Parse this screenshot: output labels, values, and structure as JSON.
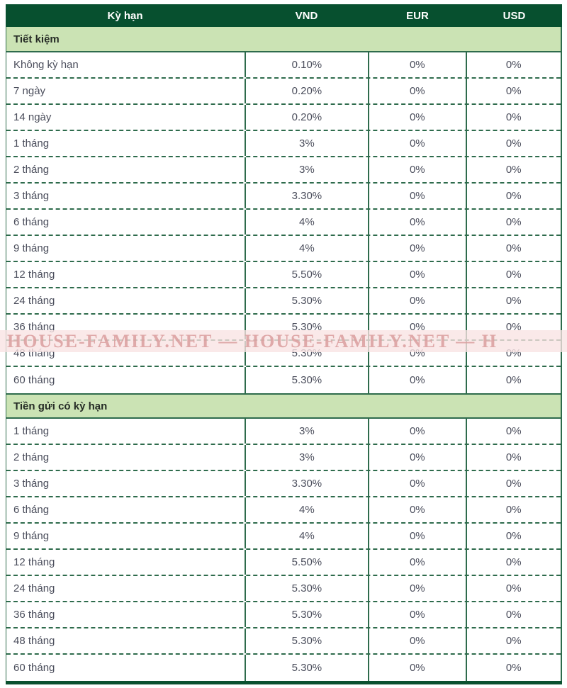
{
  "table": {
    "columns": [
      "Kỳ hạn",
      "VND",
      "EUR",
      "USD"
    ],
    "sections": [
      {
        "title": "Tiết kiệm",
        "rows": [
          [
            "Không kỳ hạn",
            "0.10%",
            "0%",
            "0%"
          ],
          [
            "7 ngày",
            "0.20%",
            "0%",
            "0%"
          ],
          [
            "14 ngày",
            "0.20%",
            "0%",
            "0%"
          ],
          [
            "1 tháng",
            "3%",
            "0%",
            "0%"
          ],
          [
            "2 tháng",
            "3%",
            "0%",
            "0%"
          ],
          [
            "3 tháng",
            "3.30%",
            "0%",
            "0%"
          ],
          [
            "6 tháng",
            "4%",
            "0%",
            "0%"
          ],
          [
            "9 tháng",
            "4%",
            "0%",
            "0%"
          ],
          [
            "12 tháng",
            "5.50%",
            "0%",
            "0%"
          ],
          [
            "24 tháng",
            "5.30%",
            "0%",
            "0%"
          ],
          [
            "36 tháng",
            "5.30%",
            "0%",
            "0%"
          ],
          [
            "48 tháng",
            "5.30%",
            "0%",
            "0%"
          ],
          [
            "60 tháng",
            "5.30%",
            "0%",
            "0%"
          ]
        ]
      },
      {
        "title": "Tiền gửi có kỳ hạn",
        "rows": [
          [
            "1 tháng",
            "3%",
            "0%",
            "0%"
          ],
          [
            "2 tháng",
            "3%",
            "0%",
            "0%"
          ],
          [
            "3 tháng",
            "3.30%",
            "0%",
            "0%"
          ],
          [
            "6 tháng",
            "4%",
            "0%",
            "0%"
          ],
          [
            "9 tháng",
            "4%",
            "0%",
            "0%"
          ],
          [
            "12 tháng",
            "5.50%",
            "0%",
            "0%"
          ],
          [
            "24 tháng",
            "5.30%",
            "0%",
            "0%"
          ],
          [
            "36 tháng",
            "5.30%",
            "0%",
            "0%"
          ],
          [
            "48 tháng",
            "5.30%",
            "0%",
            "0%"
          ],
          [
            "60 tháng",
            "5.30%",
            "0%",
            "0%"
          ]
        ]
      }
    ]
  },
  "watermark": {
    "text": "HOUSE-FAMILY.NET — HOUSE-FAMILY.NET — H"
  },
  "colors": {
    "header_bg": "#07502f",
    "section_bg": "#cbe3b4",
    "border_green": "#2e6b4c",
    "bottom_border": "#0b5130",
    "row_text": "#4b4e5c",
    "watermark_pink": "#d99d9d"
  }
}
